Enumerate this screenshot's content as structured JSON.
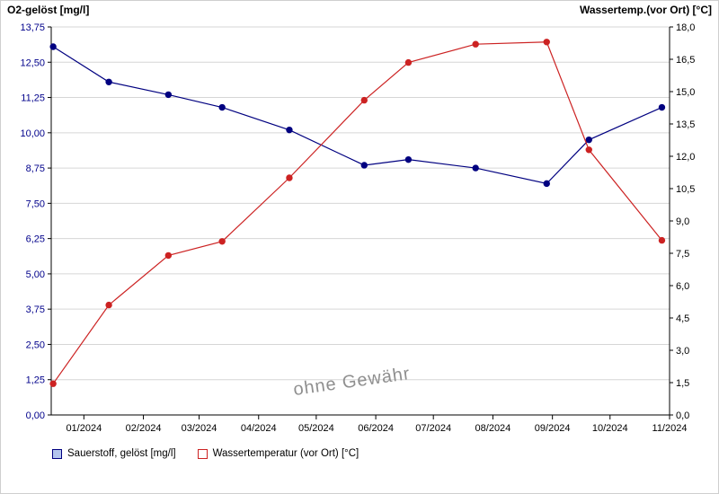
{
  "watermark_note": "ohne Gewähr",
  "chart_data": {
    "type": "line",
    "title": "",
    "grid": "horizontal",
    "legend_position": "bottom-left",
    "watermark": "ohne Gewähr",
    "x_axis": {
      "range_days": [
        0,
        322
      ],
      "tick_days": [
        17,
        48,
        77,
        108,
        138,
        169,
        199,
        230,
        261,
        291,
        322
      ],
      "tick_labels": [
        "01/2024",
        "02/2024",
        "03/2024",
        "04/2024",
        "05/2024",
        "06/2024",
        "07/2024",
        "08/2024",
        "09/2024",
        "10/2024",
        "11/2024"
      ],
      "label_color": "#000000"
    },
    "left_axis": {
      "title": "O2-gelöst [mg/l]",
      "min": 0,
      "max": 13.75,
      "step": 1.25,
      "tick_values": [
        0,
        1.25,
        2.5,
        3.75,
        5,
        6.25,
        7.5,
        8.75,
        10,
        11.25,
        12.5,
        13.75
      ],
      "tick_labels": [
        "0,00",
        "1,25",
        "2,50",
        "3,75",
        "5,00",
        "6,25",
        "7,50",
        "8,75",
        "10,00",
        "11,25",
        "12,50",
        "13,75"
      ],
      "label_color": "#00008b"
    },
    "right_axis": {
      "title": "Wassertemp.(vor Ort) [°C]",
      "min": 0,
      "max": 18,
      "step": 1.5,
      "tick_values": [
        0,
        1.5,
        3,
        4.5,
        6,
        7.5,
        9,
        10.5,
        12,
        13.5,
        15,
        16.5,
        18
      ],
      "tick_labels": [
        "0,0",
        "1,5",
        "3,0",
        "4,5",
        "6,0",
        "7,5",
        "9,0",
        "10,5",
        "12,0",
        "13,5",
        "15,0",
        "16,5",
        "18,0"
      ],
      "label_color": "#000000"
    },
    "series": [
      {
        "name": "Sauerstoff, gelöst [mg/l]",
        "axis": "left",
        "color": "#000080",
        "legend_fill": "#b4c6ee",
        "x_days": [
          1,
          30,
          61,
          89,
          124,
          163,
          186,
          221,
          258,
          280,
          318
        ],
        "values": [
          13.05,
          11.8,
          11.35,
          10.9,
          10.1,
          8.85,
          9.05,
          8.75,
          8.2,
          9.75,
          10.9
        ]
      },
      {
        "name": "Wassertemperatur (vor Ort) [°C]",
        "axis": "right",
        "color": "#cc2222",
        "legend_fill": "#f2９a9a",
        "x_days": [
          1,
          30,
          61,
          89,
          124,
          163,
          186,
          221,
          258,
          280,
          318
        ],
        "values": [
          1.45,
          5.1,
          7.4,
          8.05,
          11.0,
          14.6,
          16.35,
          17.2,
          17.3,
          12.3,
          8.1
        ]
      }
    ]
  }
}
